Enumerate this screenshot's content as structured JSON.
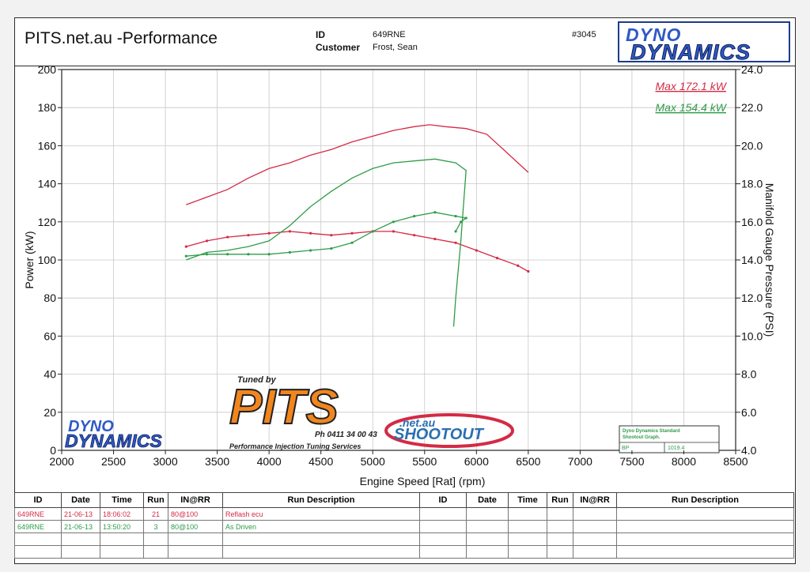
{
  "header": {
    "title": "PITS.net.au -Performance",
    "id_label": "ID",
    "id_value": "649RNE",
    "customer_label": "Customer",
    "customer_value": "Frost, Sean",
    "job_number": "#3045"
  },
  "brand": {
    "line1": "DYNO",
    "line2": "DYNAMICS"
  },
  "watermark": {
    "tuned_by": "Tuned by",
    "pits": "PITS",
    "phone": "Ph 0411 34 00 43",
    "tagline": "Performance Injection Tuning Services",
    "netau": ".net.au",
    "shootout": "SHOOTOUT",
    "dyno1": "DYNO",
    "dyno2": "DYNAMICS"
  },
  "stamp": {
    "line1": "Dyno Dynamics Standard",
    "line2": "Shootout Graph.",
    "bp_label": "BP",
    "bp_value": "1019.4"
  },
  "colors": {
    "red": "#d42a45",
    "green": "#2e9c48",
    "grid": "#c8c8c8"
  },
  "table": {
    "headers": [
      "ID",
      "Date",
      "Time",
      "Run",
      "IN@RR",
      "Run Description",
      "ID",
      "Date",
      "Time",
      "Run",
      "IN@RR",
      "Run Description"
    ],
    "rows": [
      {
        "id": "649RNE",
        "date": "21-06-13",
        "time": "18:06:02",
        "run": "21",
        "inrr": "80@100",
        "desc": "Reflash ecu",
        "color": "red"
      },
      {
        "id": "649RNE",
        "date": "21-06-13",
        "time": "13:50:20",
        "run": "3",
        "inrr": "80@100",
        "desc": "As Driven",
        "color": "green"
      }
    ]
  },
  "chart_data": {
    "type": "line",
    "title": "",
    "xlabel": "Engine Speed [Rat] (rpm)",
    "ylabel": "Power (kW)",
    "y2label": "Manifold Gauge Pressure (PSI)",
    "xlim": [
      2000,
      8500
    ],
    "ylim": [
      0,
      200
    ],
    "y2lim": [
      4.0,
      24.0
    ],
    "x_ticks": [
      "2000",
      "2500",
      "3000",
      "3500",
      "4000",
      "4500",
      "5000",
      "5500",
      "6000",
      "6500",
      "7000",
      "7500",
      "8000",
      "8500"
    ],
    "y_ticks": [
      "0",
      "20",
      "40",
      "60",
      "80",
      "100",
      "120",
      "140",
      "160",
      "180",
      "200"
    ],
    "y2_ticks": [
      "4.0",
      "6.0",
      "8.0",
      "10.0",
      "12.0",
      "14.0",
      "16.0",
      "18.0",
      "20.0",
      "22.0",
      "24.0"
    ],
    "grid": true,
    "legend_position": "top-right",
    "annotations": [
      {
        "text": "Max 172.1 kW",
        "color": "red"
      },
      {
        "text": "Max 154.4 kW",
        "color": "green"
      }
    ],
    "series": [
      {
        "axis": "left",
        "color": "red",
        "x": [
          3200,
          3400,
          3600,
          3800,
          4000,
          4200,
          4400,
          4600,
          4800,
          5000,
          5200,
          5400,
          5550,
          5700,
          5900,
          6100,
          6300,
          6500
        ],
        "values": [
          129,
          133,
          137,
          143,
          148,
          151,
          155,
          158,
          162,
          165,
          168,
          170,
          171,
          170,
          169,
          166,
          156,
          146
        ]
      },
      {
        "axis": "right",
        "color": "red",
        "x": [
          3200,
          3400,
          3600,
          3800,
          4000,
          4200,
          4400,
          4600,
          4800,
          5000,
          5200,
          5400,
          5600,
          5800,
          6000,
          6200,
          6400,
          6500
        ],
        "values": [
          14.7,
          15.0,
          15.2,
          15.3,
          15.4,
          15.5,
          15.4,
          15.3,
          15.4,
          15.5,
          15.5,
          15.3,
          15.1,
          14.9,
          14.5,
          14.1,
          13.7,
          13.4
        ]
      },
      {
        "axis": "left",
        "color": "green",
        "x": [
          3200,
          3400,
          3600,
          3800,
          4000,
          4200,
          4400,
          4600,
          4800,
          5000,
          5200,
          5400,
          5600,
          5800,
          5900,
          5850,
          5800,
          5780
        ],
        "values": [
          100,
          104,
          105,
          107,
          110,
          118,
          128,
          136,
          143,
          148,
          151,
          152,
          153,
          151,
          147,
          110,
          80,
          65
        ]
      },
      {
        "axis": "right",
        "color": "green",
        "x": [
          3200,
          3400,
          3600,
          3800,
          4000,
          4200,
          4400,
          4600,
          4800,
          5000,
          5200,
          5400,
          5600,
          5800,
          5900,
          5850,
          5800
        ],
        "values": [
          14.2,
          14.3,
          14.3,
          14.3,
          14.3,
          14.4,
          14.5,
          14.6,
          14.9,
          15.5,
          16.0,
          16.3,
          16.5,
          16.3,
          16.2,
          16.0,
          15.5
        ]
      }
    ]
  }
}
